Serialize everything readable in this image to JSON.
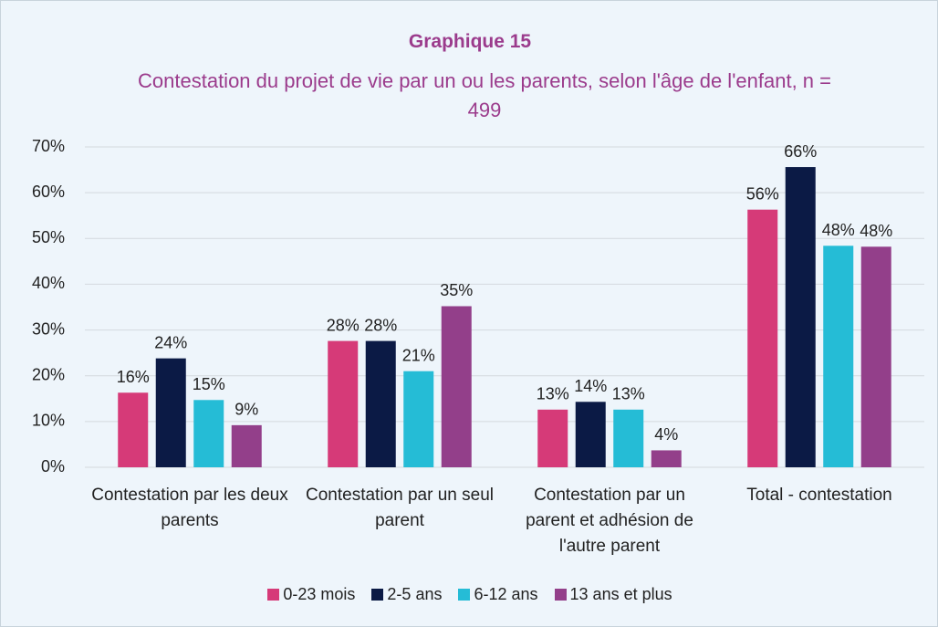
{
  "chart_data": {
    "type": "bar",
    "title": "Graphique 15",
    "subtitle": "Contestation du projet de vie par un ou les parents, selon l'âge de l'enfant, n = 499",
    "categories": [
      "Contestation par les deux parents",
      "Contestation par un seul parent",
      "Contestation par un parent et adhésion de l'autre parent",
      "Total - contestation"
    ],
    "series": [
      {
        "name": "0-23 mois",
        "color": "#d63a78",
        "values": [
          16.3,
          27.6,
          12.6,
          56.3
        ],
        "value_labels": [
          "16%",
          "28%",
          "13%",
          "56%"
        ]
      },
      {
        "name": "2-5 ans",
        "color": "#0b1a45",
        "values": [
          23.8,
          27.6,
          14.3,
          65.6
        ],
        "value_labels": [
          "24%",
          "28%",
          "14%",
          "66%"
        ]
      },
      {
        "name": "6-12 ans",
        "color": "#25bcd6",
        "values": [
          14.7,
          21,
          12.6,
          48.4
        ],
        "value_labels": [
          "15%",
          "21%",
          "13%",
          "48%"
        ]
      },
      {
        "name": "13 ans et plus",
        "color": "#933f8a",
        "values": [
          9.2,
          35.2,
          3.7,
          48.2
        ],
        "value_labels": [
          "9%",
          "35%",
          "4%",
          "48%"
        ]
      }
    ],
    "ylim": [
      0,
      70
    ],
    "yticks": [
      {
        "value": 0,
        "label": "0%"
      },
      {
        "value": 10,
        "label": "10%"
      },
      {
        "value": 20,
        "label": "20%"
      },
      {
        "value": 30,
        "label": "30%"
      },
      {
        "value": 40,
        "label": "40%"
      },
      {
        "value": 50,
        "label": "50%"
      },
      {
        "value": 60,
        "label": "60%"
      },
      {
        "value": 70,
        "label": "70%"
      }
    ],
    "grid": true,
    "legend": "bottom"
  }
}
